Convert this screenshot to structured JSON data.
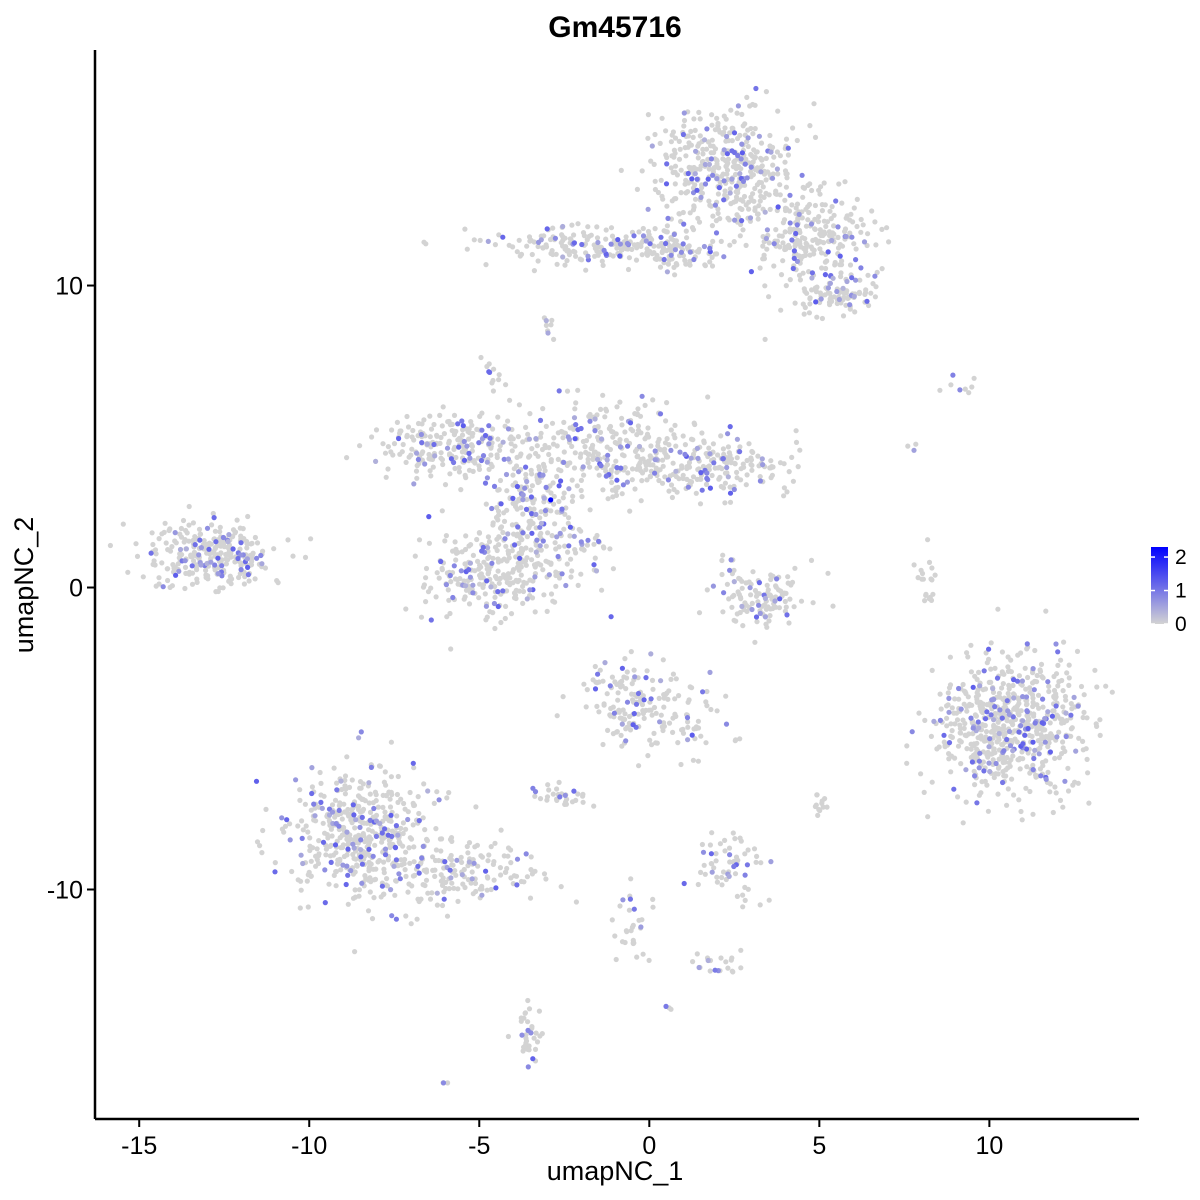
{
  "chart_data": {
    "type": "scatter",
    "title": "Gm45716",
    "xlabel": "umapNC_1",
    "ylabel": "umapNC_2",
    "xlim": [
      -16.3,
      14.4
    ],
    "ylim": [
      -17.6,
      17.8
    ],
    "xticks": [
      -15,
      -10,
      -5,
      0,
      5,
      10
    ],
    "xtick_labels": [
      "-15",
      "-10",
      "-5",
      "0",
      "5",
      "10"
    ],
    "yticks": [
      -10,
      0,
      10
    ],
    "ytick_labels": [
      "-10",
      "0",
      "10"
    ],
    "grid": false,
    "legend": {
      "type": "colorbar",
      "placement": "right",
      "range": [
        0,
        2.3
      ],
      "ticks": [
        0,
        1,
        2
      ],
      "tick_labels": [
        "0",
        "1",
        "2"
      ],
      "low_color": "#D3D3D3",
      "high_color": "#0000FF"
    },
    "colors": {
      "low": "#D3D3D3",
      "high": "#0000FF"
    },
    "clusters": [
      {
        "cx": 2.3,
        "cy": 13.8,
        "sx": 1.1,
        "sy": 1.0,
        "n": 420
      },
      {
        "cx": 4.8,
        "cy": 11.6,
        "sx": 0.9,
        "sy": 0.9,
        "n": 260
      },
      {
        "cx": 5.4,
        "cy": 9.6,
        "sx": 0.6,
        "sy": 0.35,
        "n": 80
      },
      {
        "cx": -2.0,
        "cy": 11.3,
        "sx": 1.4,
        "sy": 0.3,
        "n": 150
      },
      {
        "cx": 0.6,
        "cy": 11.2,
        "sx": 0.9,
        "sy": 0.4,
        "n": 110
      },
      {
        "cx": -3.0,
        "cy": 8.6,
        "sx": 0.1,
        "sy": 0.2,
        "n": 8
      },
      {
        "cx": -12.9,
        "cy": 1.1,
        "sx": 0.9,
        "sy": 0.55,
        "n": 300
      },
      {
        "cx": -5.8,
        "cy": 4.7,
        "sx": 1.2,
        "sy": 0.5,
        "n": 220
      },
      {
        "cx": -3.6,
        "cy": 2.7,
        "sx": 0.7,
        "sy": 1.0,
        "n": 200
      },
      {
        "cx": -4.6,
        "cy": 0.4,
        "sx": 1.1,
        "sy": 0.7,
        "n": 260
      },
      {
        "cx": -1.2,
        "cy": 4.6,
        "sx": 1.4,
        "sy": 0.8,
        "n": 280
      },
      {
        "cx": 1.8,
        "cy": 4.0,
        "sx": 1.2,
        "sy": 0.5,
        "n": 180
      },
      {
        "cx": -1.9,
        "cy": 1.3,
        "sx": 0.4,
        "sy": 0.4,
        "n": 30
      },
      {
        "cx": -4.6,
        "cy": 7.1,
        "sx": 0.15,
        "sy": 0.2,
        "n": 12
      },
      {
        "cx": 3.1,
        "cy": -0.3,
        "sx": 0.8,
        "sy": 0.55,
        "n": 120
      },
      {
        "cx": 8.2,
        "cy": 0.2,
        "sx": 0.2,
        "sy": 0.6,
        "n": 20
      },
      {
        "cx": 10.6,
        "cy": -4.6,
        "sx": 1.1,
        "sy": 1.2,
        "n": 650
      },
      {
        "cx": -0.7,
        "cy": -3.8,
        "sx": 0.6,
        "sy": 0.7,
        "n": 130
      },
      {
        "cx": 1.0,
        "cy": -4.4,
        "sx": 0.5,
        "sy": 0.6,
        "n": 50
      },
      {
        "cx": -8.3,
        "cy": -8.2,
        "sx": 1.1,
        "sy": 1.1,
        "n": 520
      },
      {
        "cx": -5.2,
        "cy": -9.6,
        "sx": 1.1,
        "sy": 0.5,
        "n": 120
      },
      {
        "cx": -2.5,
        "cy": -6.9,
        "sx": 0.4,
        "sy": 0.2,
        "n": 30
      },
      {
        "cx": 2.4,
        "cy": -9.2,
        "sx": 0.5,
        "sy": 0.6,
        "n": 60
      },
      {
        "cx": 5.0,
        "cy": -7.2,
        "sx": 0.15,
        "sy": 0.2,
        "n": 12
      },
      {
        "cx": -0.5,
        "cy": -11.2,
        "sx": 0.3,
        "sy": 0.6,
        "n": 30
      },
      {
        "cx": 2.2,
        "cy": -12.5,
        "sx": 0.4,
        "sy": 0.2,
        "n": 20
      },
      {
        "cx": -3.5,
        "cy": -14.8,
        "sx": 0.2,
        "sy": 0.5,
        "n": 35
      },
      {
        "cx": 9.1,
        "cy": 6.7,
        "sx": 0.6,
        "sy": 0.15,
        "n": 8
      },
      {
        "cx": 7.8,
        "cy": 4.8,
        "sx": 0.1,
        "sy": 0.1,
        "n": 3
      },
      {
        "cx": -6.1,
        "cy": -16.4,
        "sx": 0.1,
        "sy": 0.05,
        "n": 3
      },
      {
        "cx": 2.6,
        "cy": -5.1,
        "sx": 0.1,
        "sy": 0.05,
        "n": 3
      },
      {
        "cx": 0.6,
        "cy": -13.9,
        "sx": 0.1,
        "sy": 0.05,
        "n": 3
      }
    ],
    "max_point": {
      "x": -2.9,
      "y": 2.9,
      "value": 2.3
    }
  }
}
